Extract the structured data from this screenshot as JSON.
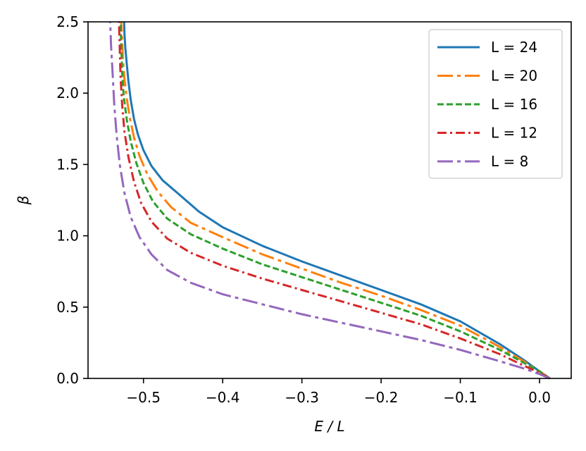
{
  "chart_data": {
    "type": "line",
    "title": "",
    "xlabel": "E / L",
    "ylabel": "β",
    "xlim": [
      -0.57,
      0.04
    ],
    "ylim": [
      0.0,
      2.5
    ],
    "xticks": [
      -0.5,
      -0.4,
      -0.3,
      -0.2,
      -0.1,
      0.0
    ],
    "xtick_labels": [
      "−0.5",
      "−0.4",
      "−0.3",
      "−0.2",
      "−0.1",
      "0.0"
    ],
    "yticks": [
      0.0,
      0.5,
      1.0,
      1.5,
      2.0,
      2.5
    ],
    "ytick_labels": [
      "0.0",
      "0.5",
      "1.0",
      "1.5",
      "2.0",
      "2.5"
    ],
    "grid": false,
    "legend_position": "top-right",
    "series": [
      {
        "name": "L = 24",
        "color": "#1f77b4",
        "dash": "solid",
        "x": [
          0.013,
          0.0,
          -0.02,
          -0.05,
          -0.1,
          -0.15,
          -0.2,
          -0.25,
          -0.3,
          -0.35,
          -0.4,
          -0.43,
          -0.455,
          -0.476,
          -0.49,
          -0.5,
          -0.507,
          -0.512,
          -0.516,
          -0.519,
          -0.521,
          -0.523,
          -0.524,
          -0.5245
        ],
        "y": [
          0.0,
          0.05,
          0.13,
          0.24,
          0.4,
          0.52,
          0.62,
          0.72,
          0.82,
          0.93,
          1.06,
          1.17,
          1.29,
          1.39,
          1.49,
          1.6,
          1.71,
          1.82,
          1.95,
          2.08,
          2.2,
          2.32,
          2.42,
          2.5
        ]
      },
      {
        "name": "L = 20",
        "color": "#ff7f0e",
        "dash": "long-dash-dot",
        "x": [
          0.013,
          0.0,
          -0.02,
          -0.05,
          -0.1,
          -0.15,
          -0.2,
          -0.25,
          -0.3,
          -0.35,
          -0.4,
          -0.44,
          -0.465,
          -0.482,
          -0.495,
          -0.505,
          -0.512,
          -0.517,
          -0.521,
          -0.524,
          -0.526,
          -0.527,
          -0.528
        ],
        "y": [
          0.0,
          0.05,
          0.12,
          0.22,
          0.37,
          0.48,
          0.58,
          0.67,
          0.77,
          0.87,
          0.99,
          1.09,
          1.2,
          1.31,
          1.43,
          1.56,
          1.69,
          1.82,
          1.96,
          2.1,
          2.24,
          2.38,
          2.5
        ]
      },
      {
        "name": "L = 16",
        "color": "#2ca02c",
        "dash": "dashed",
        "x": [
          0.013,
          0.0,
          -0.02,
          -0.05,
          -0.1,
          -0.15,
          -0.2,
          -0.25,
          -0.3,
          -0.35,
          -0.4,
          -0.44,
          -0.47,
          -0.488,
          -0.5,
          -0.509,
          -0.516,
          -0.521,
          -0.525,
          -0.527,
          -0.528,
          -0.529
        ],
        "y": [
          0.0,
          0.05,
          0.11,
          0.2,
          0.33,
          0.44,
          0.53,
          0.62,
          0.71,
          0.8,
          0.91,
          1.01,
          1.12,
          1.24,
          1.37,
          1.51,
          1.66,
          1.81,
          1.98,
          2.15,
          2.32,
          2.5
        ]
      },
      {
        "name": "L = 12",
        "color": "#d62728",
        "dash": "dash-dot",
        "x": [
          0.013,
          0.0,
          -0.02,
          -0.05,
          -0.1,
          -0.15,
          -0.2,
          -0.25,
          -0.3,
          -0.35,
          -0.4,
          -0.44,
          -0.47,
          -0.49,
          -0.503,
          -0.512,
          -0.519,
          -0.524,
          -0.527,
          -0.529,
          -0.53,
          -0.531
        ],
        "y": [
          0.0,
          0.04,
          0.09,
          0.17,
          0.28,
          0.38,
          0.46,
          0.54,
          0.62,
          0.7,
          0.79,
          0.88,
          0.98,
          1.1,
          1.23,
          1.38,
          1.55,
          1.73,
          1.92,
          2.12,
          2.32,
          2.5
        ]
      },
      {
        "name": "L = 8",
        "color": "#9467bd",
        "dash": "long-dash-dot",
        "x": [
          0.013,
          0.0,
          -0.02,
          -0.05,
          -0.1,
          -0.15,
          -0.2,
          -0.25,
          -0.3,
          -0.35,
          -0.4,
          -0.44,
          -0.47,
          -0.49,
          -0.505,
          -0.516,
          -0.524,
          -0.53,
          -0.534,
          -0.537,
          -0.539,
          -0.541,
          -0.542
        ],
        "y": [
          0.0,
          0.03,
          0.07,
          0.12,
          0.2,
          0.27,
          0.33,
          0.39,
          0.45,
          0.52,
          0.59,
          0.67,
          0.76,
          0.87,
          0.99,
          1.13,
          1.3,
          1.5,
          1.71,
          1.93,
          2.14,
          2.34,
          2.5
        ]
      }
    ]
  }
}
